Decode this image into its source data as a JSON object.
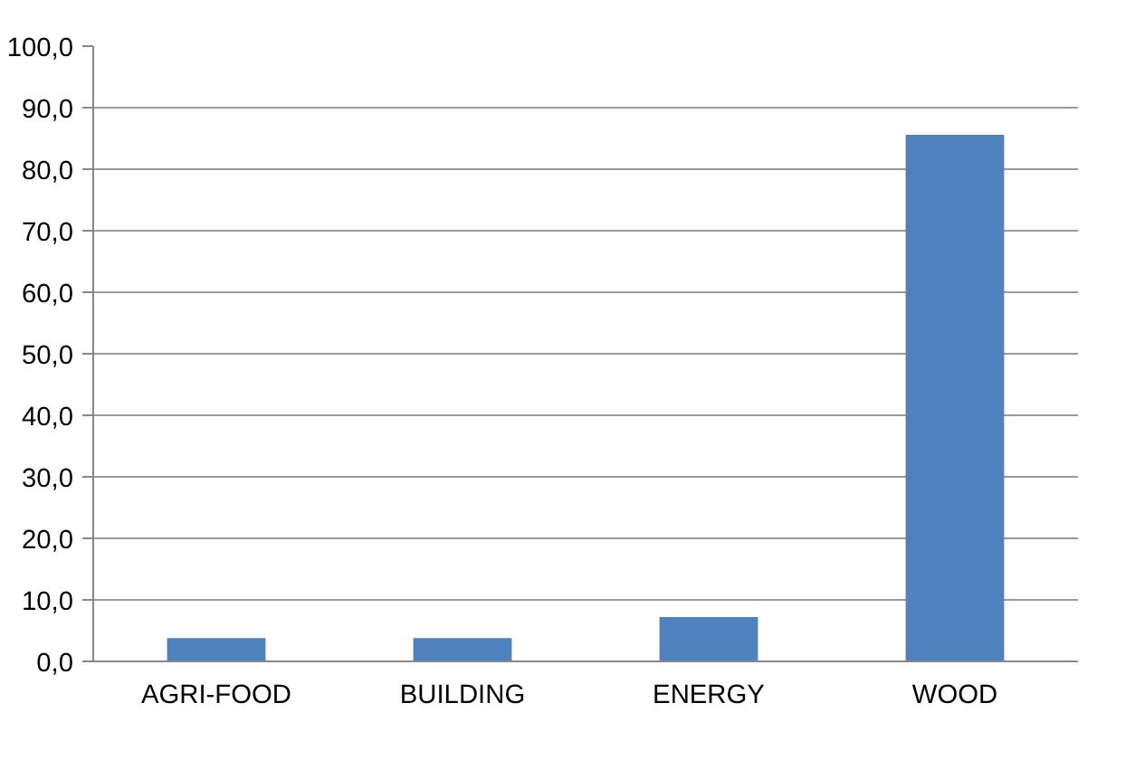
{
  "chart_data": {
    "type": "bar",
    "categories": [
      "AGRI-FOOD",
      "BUILDING",
      "ENERGY",
      "WOOD"
    ],
    "values": [
      3.8,
      3.8,
      7.2,
      85.6
    ],
    "color": "#4f81bd",
    "ylim": [
      0,
      100
    ],
    "yticks": [
      {
        "value": 0,
        "label": "0,0"
      },
      {
        "value": 10,
        "label": "10,0"
      },
      {
        "value": 20,
        "label": "20,0"
      },
      {
        "value": 30,
        "label": "30,0"
      },
      {
        "value": 40,
        "label": "40,0"
      },
      {
        "value": 50,
        "label": "50,0"
      },
      {
        "value": 60,
        "label": "60,0"
      },
      {
        "value": 70,
        "label": "70,0"
      },
      {
        "value": 80,
        "label": "80,0"
      },
      {
        "value": 90,
        "label": "90,0"
      },
      {
        "value": 100,
        "label": "100,0"
      }
    ],
    "grid": "y"
  }
}
